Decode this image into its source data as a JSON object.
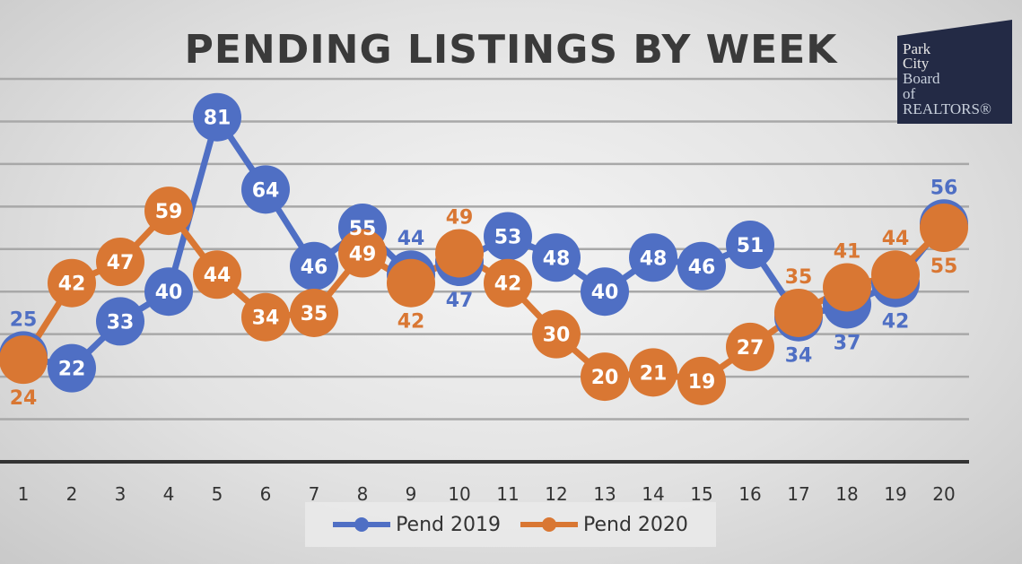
{
  "chart_data": {
    "type": "line",
    "title": "PENDING LISTINGS BY WEEK",
    "x": [
      1,
      2,
      3,
      4,
      5,
      6,
      7,
      8,
      9,
      10,
      11,
      12,
      13,
      14,
      15,
      16,
      17,
      18,
      19,
      20
    ],
    "ylim": [
      0,
      90
    ],
    "grid": true,
    "legend_position": "bottom",
    "series": [
      {
        "name": "Pend 2019",
        "color": "#4f6fc4",
        "values": [
          25,
          22,
          33,
          40,
          81,
          64,
          46,
          55,
          44,
          47,
          53,
          48,
          40,
          48,
          46,
          51,
          34,
          37,
          42,
          56
        ]
      },
      {
        "name": "Pend 2020",
        "color": "#d97733",
        "values": [
          24,
          42,
          47,
          59,
          44,
          34,
          35,
          49,
          42,
          49,
          42,
          30,
          20,
          21,
          19,
          27,
          35,
          41,
          44,
          55
        ]
      }
    ]
  },
  "logo": {
    "lines": [
      "Park",
      "City",
      "Board",
      "of",
      "REALTORS®"
    ],
    "background": "#232a45"
  }
}
